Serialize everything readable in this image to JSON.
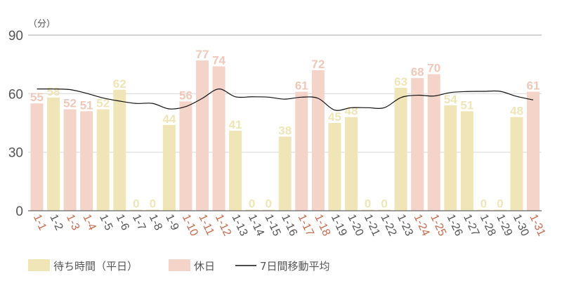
{
  "chart_data": {
    "type": "bar",
    "unit_label": "（分）",
    "ylim": [
      0,
      90
    ],
    "yticks": [
      0,
      30,
      60,
      90
    ],
    "grid": true,
    "legend_position": "bottom",
    "categories": [
      "1-1",
      "1-2",
      "1-3",
      "1-4",
      "1-5",
      "1-6",
      "1-7",
      "1-8",
      "1-9",
      "1-10",
      "1-11",
      "1-12",
      "1-13",
      "1-14",
      "1-15",
      "1-16",
      "1-17",
      "1-18",
      "1-19",
      "1-20",
      "1-21",
      "1-22",
      "1-23",
      "1-24",
      "1-25",
      "1-26",
      "1-27",
      "1-28",
      "1-29",
      "1-30",
      "1-31"
    ],
    "holiday": [
      true,
      false,
      true,
      true,
      false,
      false,
      false,
      false,
      false,
      true,
      true,
      true,
      false,
      false,
      false,
      false,
      true,
      true,
      false,
      false,
      false,
      false,
      false,
      true,
      true,
      false,
      false,
      false,
      false,
      false,
      true
    ],
    "values": [
      55,
      58,
      52,
      51,
      52,
      62,
      0,
      0,
      44,
      56,
      77,
      74,
      41,
      0,
      0,
      38,
      61,
      72,
      45,
      48,
      0,
      0,
      63,
      68,
      70,
      54,
      51,
      0,
      0,
      48,
      61
    ],
    "moving_average": [
      62.4,
      62.4,
      62.1,
      60.2,
      57.8,
      56.2,
      55.0,
      55.0,
      52.2,
      53.4,
      57.6,
      62.4,
      58.4,
      58.4,
      58.2,
      57.2,
      58.2,
      57.6,
      51.6,
      52.8,
      52.8,
      52.8,
      58.0,
      59.2,
      58.8,
      60.6,
      61.1,
      61.2,
      61.2,
      58.6,
      56.8
    ],
    "series": [
      {
        "name": "待ち時間（平日）",
        "color": "#f0e5b6"
      },
      {
        "name": "休日",
        "color": "#f4d3c8"
      },
      {
        "name": "7日間移動平均",
        "color": "#111111"
      }
    ],
    "label_colors": {
      "holiday": "#c96a4c",
      "weekday": "#555555",
      "weekday_value": "#f0e5b6",
      "holiday_value": "#f0c7b8"
    }
  }
}
